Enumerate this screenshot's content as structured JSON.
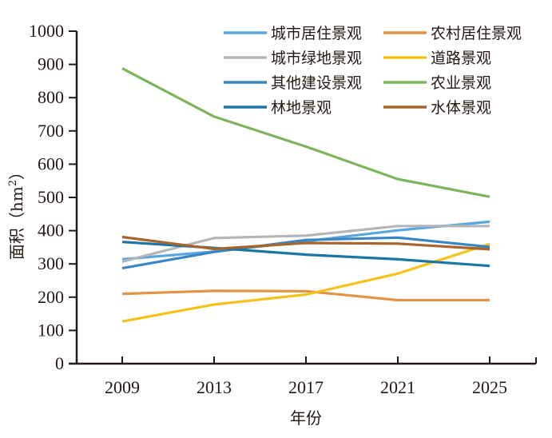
{
  "chart_data": {
    "type": "line",
    "title": "",
    "xlabel": "年份",
    "ylabel": "面积（hm²）",
    "ylabel_main": "面积（hm",
    "ylabel_sup": "2",
    "ylabel_close": "）",
    "ylim": [
      0,
      1000
    ],
    "yticks": [
      "0",
      "100",
      "200",
      "300",
      "400",
      "500",
      "600",
      "700",
      "800",
      "900",
      "1000"
    ],
    "categories": [
      "2009",
      "2013",
      "2017",
      "2021",
      "2025"
    ],
    "grid": false,
    "legend_position": "top-right",
    "series": [
      {
        "name": "城市居住景观",
        "color": "#5aa7dd",
        "values": [
          314,
          337,
          368,
          401,
          427
        ]
      },
      {
        "name": "农村居住景观",
        "color": "#e39348",
        "values": [
          210,
          219,
          218,
          191,
          191
        ]
      },
      {
        "name": "城市绿地景观",
        "color": "#b4b5b8",
        "values": [
          307,
          378,
          385,
          414,
          414
        ]
      },
      {
        "name": "道路景观",
        "color": "#f4c21a",
        "values": [
          127,
          178,
          208,
          271,
          360
        ]
      },
      {
        "name": "其他建设景观",
        "color": "#3a85c6",
        "values": [
          287,
          336,
          372,
          379,
          351
        ]
      },
      {
        "name": "农业景观",
        "color": "#7ab55c",
        "values": [
          888,
          743,
          653,
          555,
          502
        ]
      },
      {
        "name": "林地景观",
        "color": "#1b75a5",
        "values": [
          366,
          348,
          328,
          314,
          294
        ]
      },
      {
        "name": "水体景观",
        "color": "#a8642a",
        "values": [
          381,
          345,
          363,
          361,
          344
        ]
      }
    ]
  }
}
